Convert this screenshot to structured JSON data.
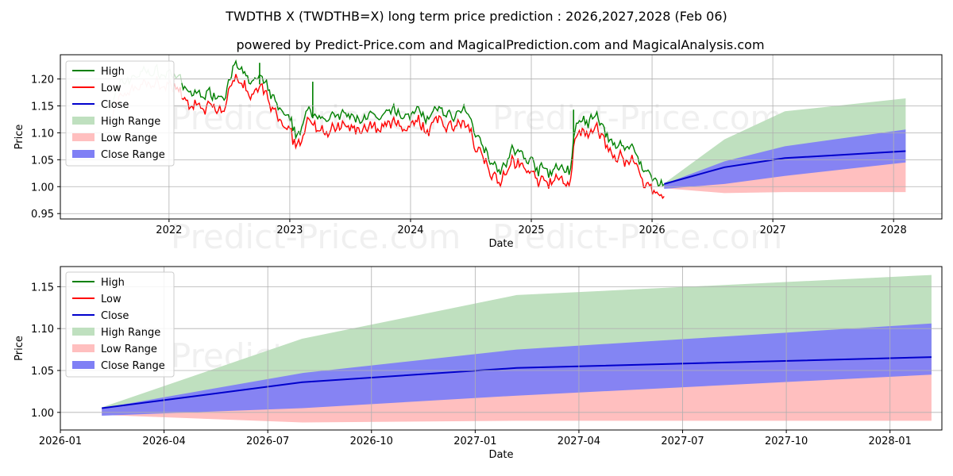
{
  "title": "TWDTHB X (TWDTHB=X) long term price prediction : 2026,2027,2028 (Feb 06)",
  "subtitle": "powered by Predict-Price.com and MagicalPrediction.com and MagicalAnalysis.com",
  "watermark": "Predict-Price.com",
  "colors": {
    "high": "#008000",
    "low": "#ff0000",
    "close": "#0000cc",
    "high_range": "#bfe0bf",
    "low_range": "#ffbfbf",
    "close_range": "#7f7ff5",
    "grid": "#b0b0b0"
  },
  "chart_data": [
    {
      "type": "line",
      "panel": "history",
      "xlabel": "Date",
      "ylabel": "Price",
      "xlim": [
        2021.1,
        2028.4
      ],
      "ylim": [
        0.94,
        1.245
      ],
      "xticks": [
        2022,
        2023,
        2024,
        2025,
        2026,
        2027,
        2028
      ],
      "xtick_labels": [
        "2022",
        "2023",
        "2024",
        "2025",
        "2026",
        "2027",
        "2028"
      ],
      "yticks": [
        0.95,
        1.0,
        1.05,
        1.1,
        1.15,
        1.2
      ],
      "ytick_labels": [
        "0.95",
        "1.00",
        "1.05",
        "1.10",
        "1.15",
        "1.20"
      ],
      "legend": [
        "High",
        "Low",
        "Close",
        "High Range",
        "Low Range",
        "Close Range"
      ],
      "legend_position": "top-left",
      "history_anchors": [
        [
          2021.5,
          1.14
        ],
        [
          2021.65,
          1.19
        ],
        [
          2021.8,
          1.205
        ],
        [
          2021.95,
          1.2
        ],
        [
          2022.05,
          1.2
        ],
        [
          2022.15,
          1.16
        ],
        [
          2022.3,
          1.165
        ],
        [
          2022.45,
          1.165
        ],
        [
          2022.55,
          1.215
        ],
        [
          2022.65,
          1.185
        ],
        [
          2022.75,
          1.19
        ],
        [
          2022.85,
          1.155
        ],
        [
          2022.95,
          1.12
        ],
        [
          2023.05,
          1.085
        ],
        [
          2023.15,
          1.125
        ],
        [
          2023.25,
          1.13
        ],
        [
          2023.35,
          1.115
        ],
        [
          2023.45,
          1.12
        ],
        [
          2023.55,
          1.115
        ],
        [
          2023.65,
          1.125
        ],
        [
          2023.75,
          1.105
        ],
        [
          2023.85,
          1.13
        ],
        [
          2023.95,
          1.12
        ],
        [
          2024.05,
          1.13
        ],
        [
          2024.15,
          1.12
        ],
        [
          2024.25,
          1.13
        ],
        [
          2024.35,
          1.125
        ],
        [
          2024.45,
          1.125
        ],
        [
          2024.55,
          1.09
        ],
        [
          2024.65,
          1.05
        ],
        [
          2024.75,
          1.025
        ],
        [
          2024.85,
          1.055
        ],
        [
          2024.95,
          1.045
        ],
        [
          2025.05,
          1.025
        ],
        [
          2025.15,
          1.015
        ],
        [
          2025.25,
          1.025
        ],
        [
          2025.32,
          1.02
        ],
        [
          2025.36,
          1.1
        ],
        [
          2025.45,
          1.105
        ],
        [
          2025.55,
          1.115
        ],
        [
          2025.65,
          1.075
        ],
        [
          2025.75,
          1.065
        ],
        [
          2025.85,
          1.06
        ],
        [
          2025.95,
          1.02
        ],
        [
          2026.05,
          0.99
        ],
        [
          2026.1,
          1.0
        ]
      ],
      "forecast": {
        "dates": [
          2026.1,
          2026.6,
          2027.1,
          2028.1
        ],
        "close": [
          1.005,
          1.036,
          1.053,
          1.066
        ],
        "high_range_upper": [
          1.006,
          1.088,
          1.14,
          1.164
        ],
        "close_range_upper": [
          1.005,
          1.047,
          1.075,
          1.106
        ],
        "close_range_lower": [
          0.996,
          1.005,
          1.02,
          1.045
        ],
        "low_range_lower": [
          0.997,
          0.988,
          0.99,
          0.99
        ]
      }
    },
    {
      "type": "area",
      "panel": "forecast",
      "xlabel": "Date",
      "ylabel": "Price",
      "xlim": [
        0.0,
        25.5
      ],
      "ylim": [
        0.979,
        1.174
      ],
      "xticks": [
        0,
        3,
        6,
        9,
        12,
        15,
        18,
        21,
        24
      ],
      "xtick_labels": [
        "2026-01",
        "2026-04",
        "2026-07",
        "2026-10",
        "2027-01",
        "2027-04",
        "2027-07",
        "2027-10",
        "2028-01"
      ],
      "yticks": [
        1.0,
        1.05,
        1.1,
        1.15
      ],
      "ytick_labels": [
        "1.00",
        "1.05",
        "1.10",
        "1.15"
      ],
      "legend": [
        "High",
        "Low",
        "Close",
        "High Range",
        "Low Range",
        "Close Range"
      ],
      "legend_position": "top-left",
      "x": [
        1.2,
        7.0,
        13.2,
        25.2
      ],
      "series": [
        {
          "name": "Close",
          "values": [
            1.005,
            1.036,
            1.053,
            1.066
          ]
        },
        {
          "name": "High Range upper",
          "values": [
            1.006,
            1.088,
            1.14,
            1.164
          ]
        },
        {
          "name": "Close Range upper",
          "values": [
            1.005,
            1.047,
            1.075,
            1.106
          ]
        },
        {
          "name": "Close Range lower",
          "values": [
            0.996,
            1.005,
            1.02,
            1.045
          ]
        },
        {
          "name": "Low Range lower",
          "values": [
            0.997,
            0.988,
            0.99,
            0.99
          ]
        }
      ]
    }
  ]
}
